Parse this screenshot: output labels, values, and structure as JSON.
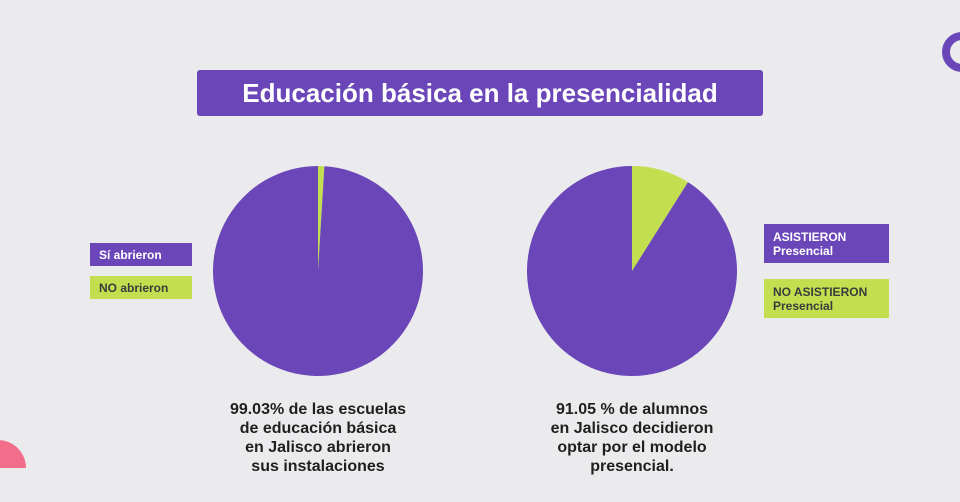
{
  "title": "Educación básica en la presencialidad",
  "colors": {
    "purple": "#6a46b8",
    "green": "#c3df4f"
  },
  "chart_data": [
    {
      "type": "pie",
      "slices": [
        {
          "label": "Sí abrieron",
          "value": 99.03,
          "color": "#6a46b8"
        },
        {
          "label": "NO abrieron",
          "value": 0.97,
          "color": "#c3df4f"
        }
      ],
      "legend_position": "left",
      "caption": [
        "99.03% de las escuelas",
        "de educación básica",
        "en Jalisco abrieron",
        "sus instalaciones"
      ]
    },
    {
      "type": "pie",
      "slices": [
        {
          "label": "ASISTIERON Presencial",
          "value": 91.05,
          "color": "#6a46b8"
        },
        {
          "label": "NO ASISTIERON Presencial",
          "value": 8.95,
          "color": "#c3df4f"
        }
      ],
      "legend_position": "right",
      "caption": [
        "91.05 % de alumnos",
        "en Jalisco decidieron",
        "optar por el modelo",
        "presencial."
      ]
    }
  ],
  "legend1": [
    {
      "lines": [
        "Sí abrieron"
      ]
    },
    {
      "lines": [
        "NO abrieron"
      ]
    }
  ],
  "legend2": [
    {
      "lines": [
        "ASISTIERON",
        "Presencial"
      ]
    },
    {
      "lines": [
        "NO ASISTIERON",
        "Presencial"
      ]
    }
  ]
}
